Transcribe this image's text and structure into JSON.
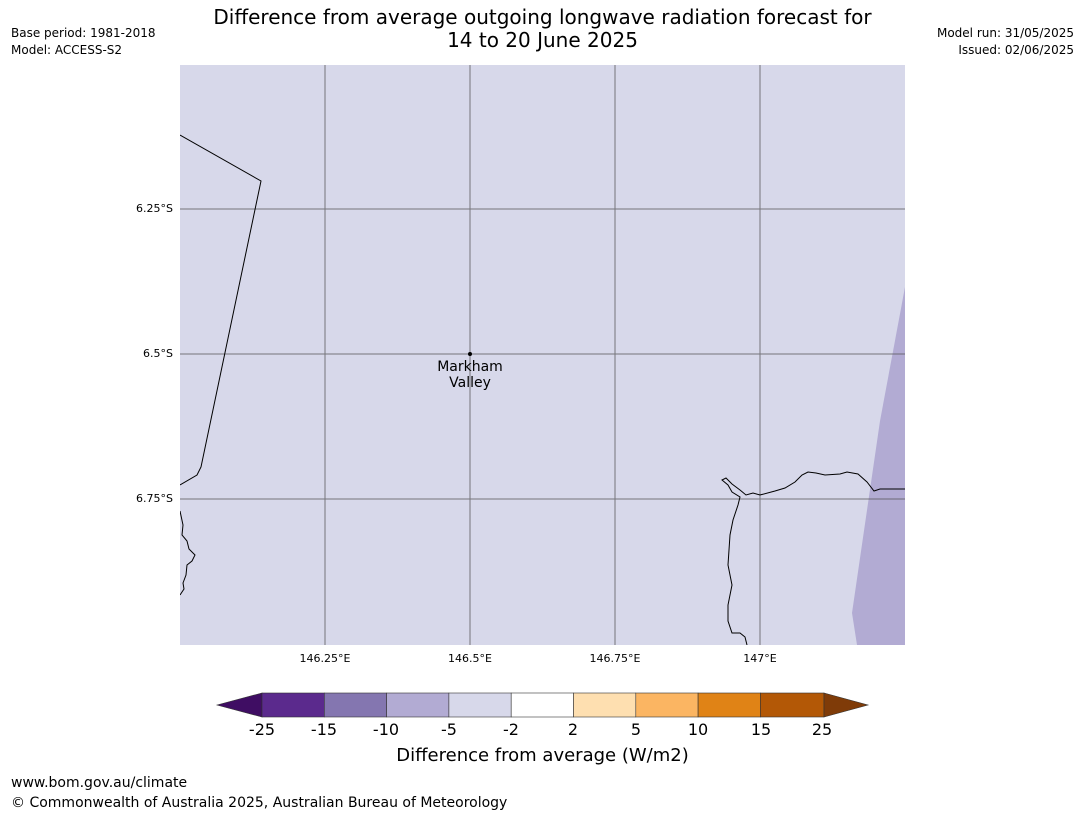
{
  "header": {
    "base_period": "Base period: 1981-2018",
    "model": "Model: ACCESS-S2",
    "model_run": "Model run: 31/05/2025",
    "issued": "Issued: 02/06/2025",
    "title_line1": "Difference from average outgoing longwave radiation forecast for",
    "title_line2": "14 to 20 June 2025"
  },
  "map": {
    "background_color": "#d7d8ea",
    "region_color": "#b2abd3",
    "lat_labels": [
      "6.25°S",
      "6.5°S",
      "6.75°S"
    ],
    "lon_labels": [
      "146.25°E",
      "146.5°E",
      "146.75°E",
      "147°E"
    ],
    "place": {
      "name_line1": "Markham",
      "name_line2": "Valley"
    }
  },
  "colorbar": {
    "ticks": [
      "-25",
      "-15",
      "-10",
      "-5",
      "-2",
      "2",
      "5",
      "10",
      "15",
      "25"
    ],
    "colors": [
      "#3f0d63",
      "#5b2a8d",
      "#8476b0",
      "#b2abd3",
      "#d7d8ea",
      "#ffffff",
      "#fedfb0",
      "#fbb562",
      "#e08316",
      "#b35806",
      "#7f3b08"
    ],
    "label": "Difference from average (W/m2)"
  },
  "footer": {
    "url": "www.bom.gov.au/climate",
    "copyright": "© Commonwealth of Australia 2025, Australian Bureau of Meteorology"
  }
}
